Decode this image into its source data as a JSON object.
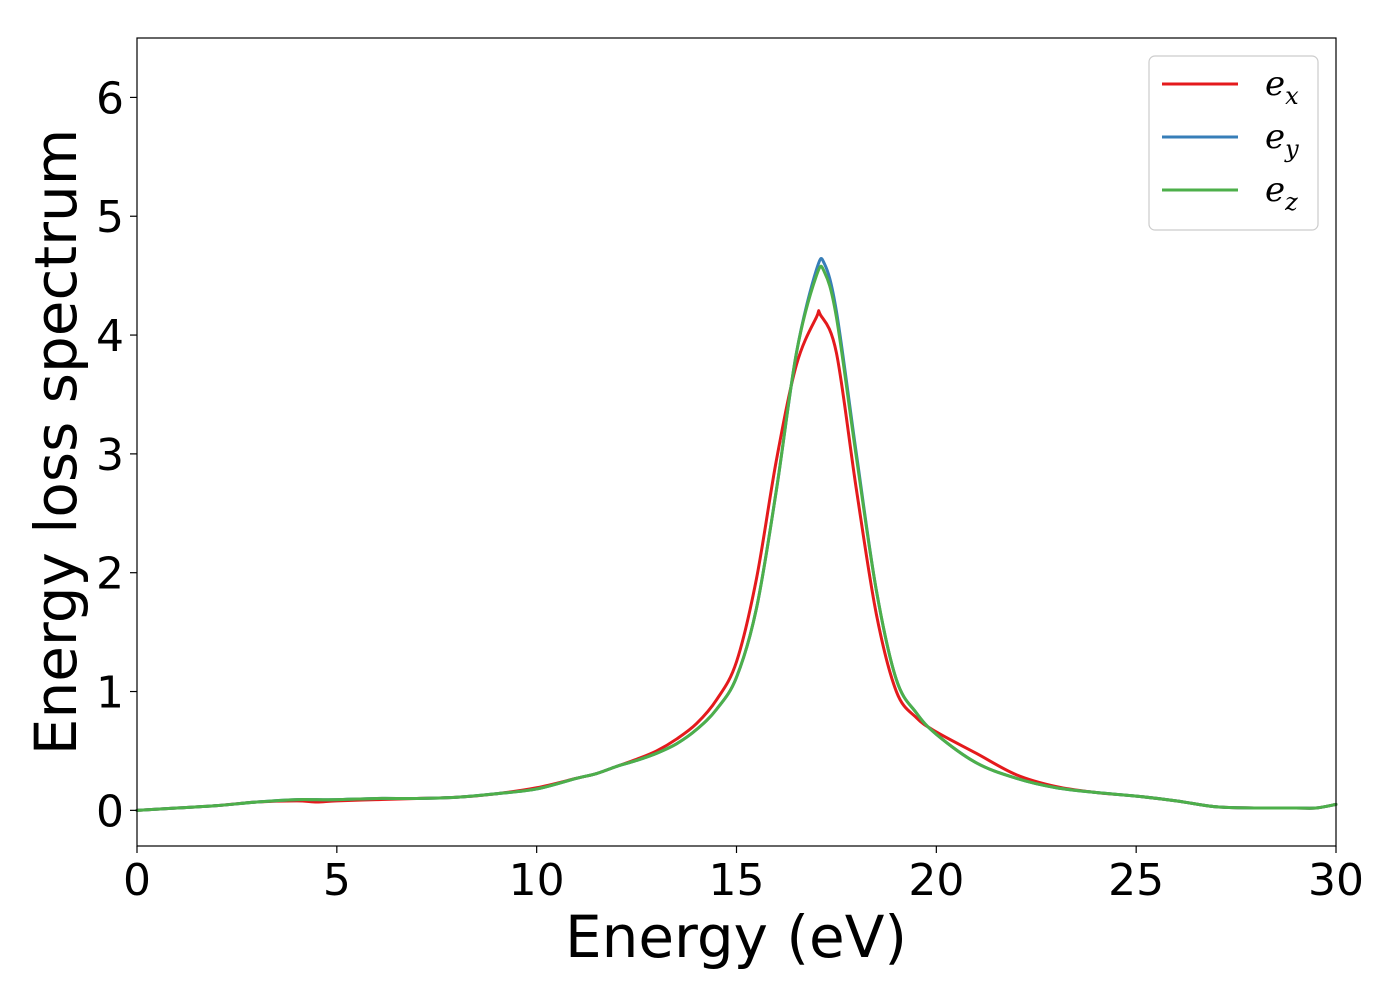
{
  "chart_data": {
    "type": "line",
    "title": "",
    "xlabel": "Energy (eV)",
    "ylabel": "Energy loss spectrum",
    "xlim": [
      0,
      30
    ],
    "ylim": [
      -0.3,
      6.5
    ],
    "xticks": [
      0,
      5,
      10,
      15,
      20,
      25,
      30
    ],
    "yticks": [
      0,
      1,
      2,
      3,
      4,
      5,
      6
    ],
    "grid": false,
    "legend_position": "top-right",
    "series": [
      {
        "name": "e_x",
        "legend_base": "e",
        "legend_sub": "x",
        "color": "#e41a1c",
        "x": [
          0,
          1,
          2,
          3,
          4,
          4.5,
          5,
          6,
          7,
          8,
          9,
          10,
          11,
          11.5,
          12,
          12.5,
          13,
          13.5,
          14,
          14.5,
          15,
          15.5,
          16,
          16.5,
          17,
          17.1,
          17.5,
          18,
          18.5,
          19,
          19.5,
          20,
          21,
          22,
          23,
          24,
          25,
          26,
          27,
          28,
          29,
          29.5,
          30
        ],
        "y": [
          0,
          0.02,
          0.04,
          0.07,
          0.08,
          0.07,
          0.08,
          0.09,
          0.1,
          0.11,
          0.14,
          0.19,
          0.27,
          0.31,
          0.37,
          0.43,
          0.5,
          0.6,
          0.73,
          0.93,
          1.25,
          1.95,
          2.95,
          3.75,
          4.15,
          4.17,
          3.85,
          2.7,
          1.65,
          1.0,
          0.78,
          0.66,
          0.48,
          0.3,
          0.2,
          0.15,
          0.12,
          0.08,
          0.03,
          0.02,
          0.02,
          0.02,
          0.05
        ]
      },
      {
        "name": "e_y",
        "legend_base": "e",
        "legend_sub": "y",
        "color": "#377eb8",
        "x": [
          0,
          1,
          2,
          3,
          4,
          4.5,
          5,
          6,
          7,
          8,
          9,
          10,
          11,
          11.5,
          12,
          12.5,
          13,
          13.5,
          14,
          14.5,
          15,
          15.5,
          16,
          16.5,
          17,
          17.2,
          17.5,
          18,
          18.5,
          19,
          19.5,
          20,
          21,
          22,
          23,
          24,
          25,
          26,
          27,
          28,
          29,
          29.5,
          30
        ],
        "y": [
          0,
          0.02,
          0.04,
          0.07,
          0.09,
          0.09,
          0.09,
          0.1,
          0.1,
          0.11,
          0.14,
          0.18,
          0.27,
          0.31,
          0.37,
          0.42,
          0.48,
          0.56,
          0.68,
          0.85,
          1.12,
          1.7,
          2.7,
          3.85,
          4.55,
          4.6,
          4.2,
          3.0,
          1.85,
          1.1,
          0.82,
          0.64,
          0.4,
          0.27,
          0.19,
          0.15,
          0.12,
          0.08,
          0.03,
          0.02,
          0.02,
          0.02,
          0.05
        ]
      },
      {
        "name": "e_z",
        "legend_base": "e",
        "legend_sub": "z",
        "color": "#4daf4a",
        "x": [
          0,
          1,
          2,
          3,
          4,
          4.5,
          5,
          6,
          7,
          8,
          9,
          10,
          11,
          11.5,
          12,
          12.5,
          13,
          13.5,
          14,
          14.5,
          15,
          15.5,
          16,
          16.5,
          17,
          17.2,
          17.5,
          18,
          18.5,
          19,
          19.5,
          20,
          21,
          22,
          23,
          24,
          25,
          26,
          27,
          28,
          29,
          29.5,
          30
        ],
        "y": [
          0,
          0.02,
          0.04,
          0.07,
          0.09,
          0.09,
          0.09,
          0.1,
          0.1,
          0.11,
          0.14,
          0.18,
          0.27,
          0.31,
          0.37,
          0.42,
          0.48,
          0.56,
          0.68,
          0.85,
          1.12,
          1.7,
          2.7,
          3.85,
          4.5,
          4.53,
          4.15,
          2.97,
          1.85,
          1.1,
          0.82,
          0.64,
          0.4,
          0.27,
          0.19,
          0.15,
          0.12,
          0.08,
          0.03,
          0.02,
          0.02,
          0.02,
          0.05
        ]
      }
    ]
  }
}
